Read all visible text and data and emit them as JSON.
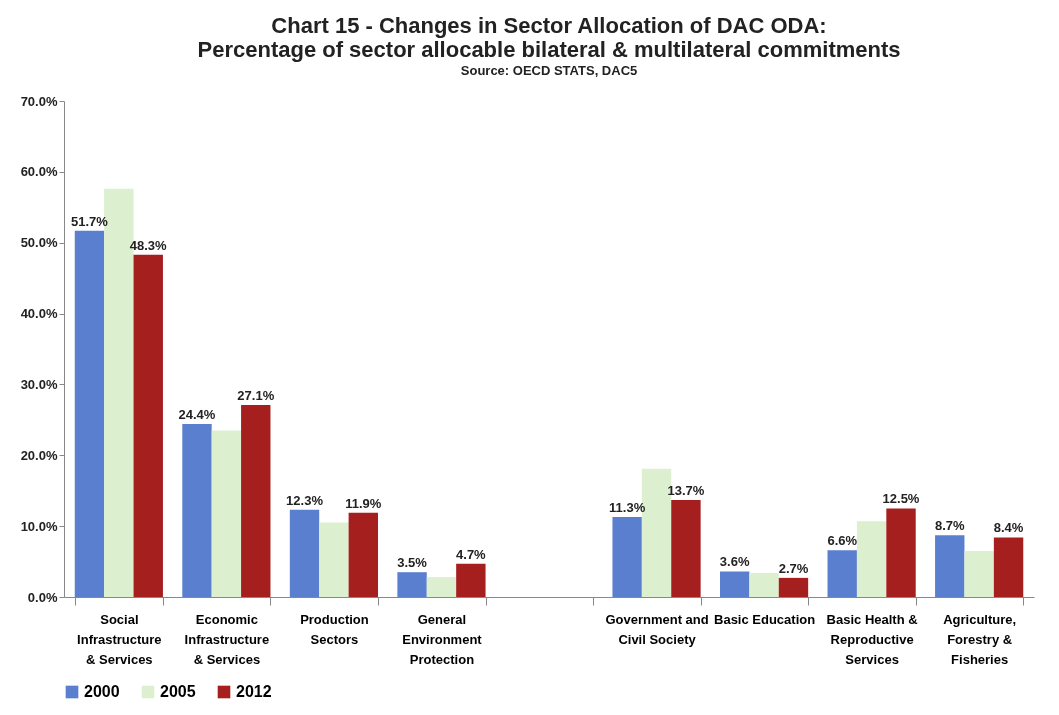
{
  "chart_data": {
    "type": "bar",
    "title": [
      "Chart 15 - Changes in Sector Allocation of DAC ODA:",
      "Percentage of sector allocable bilateral & multilateral commitments"
    ],
    "subtitle": "Source: OECD STATS, DAC5",
    "categories": [
      "Social Infrastructure & Services",
      "Economic Infrastructure & Services",
      "Production Sectors",
      "General Environment Protection",
      null,
      "Government and Civil Society",
      "Basic Education",
      "Basic Health & Reproductive Services",
      "Agriculture, Forestry & Fisheries"
    ],
    "series": [
      {
        "name": "2000",
        "color": "#5b7fcf",
        "values": [
          51.7,
          24.4,
          12.3,
          3.5,
          null,
          11.3,
          3.6,
          6.6,
          8.7
        ],
        "value_labels": [
          "51.7%",
          "24.4%",
          "12.3%",
          "3.5%",
          null,
          "11.3%",
          "3.6%",
          "6.6%",
          "8.7%"
        ]
      },
      {
        "name": "2005",
        "color": "#dcefcf",
        "values": [
          57.6,
          23.5,
          10.5,
          2.8,
          null,
          18.1,
          3.4,
          10.7,
          6.5
        ]
      },
      {
        "name": "2012",
        "color": "#a51f1f",
        "values": [
          48.3,
          27.1,
          11.9,
          4.7,
          null,
          13.7,
          2.7,
          12.5,
          8.4
        ],
        "value_labels": [
          "48.3%",
          "27.1%",
          "11.9%",
          "4.7%",
          null,
          "13.7%",
          "2.7%",
          "12.5%",
          "8.4%"
        ]
      }
    ],
    "ylim": [
      0,
      70
    ],
    "yticks": [
      {
        "value": 0,
        "label": "0.0%"
      },
      {
        "value": 10,
        "label": "10.0%"
      },
      {
        "value": 20,
        "label": "20.0%"
      },
      {
        "value": 30,
        "label": "30.0%"
      },
      {
        "value": 40,
        "label": "40.0%"
      },
      {
        "value": 50,
        "label": "50.0%"
      },
      {
        "value": 60,
        "label": "60.0%"
      },
      {
        "value": 70,
        "label": "70.0%"
      }
    ],
    "grid": false,
    "legend": "bottom"
  }
}
